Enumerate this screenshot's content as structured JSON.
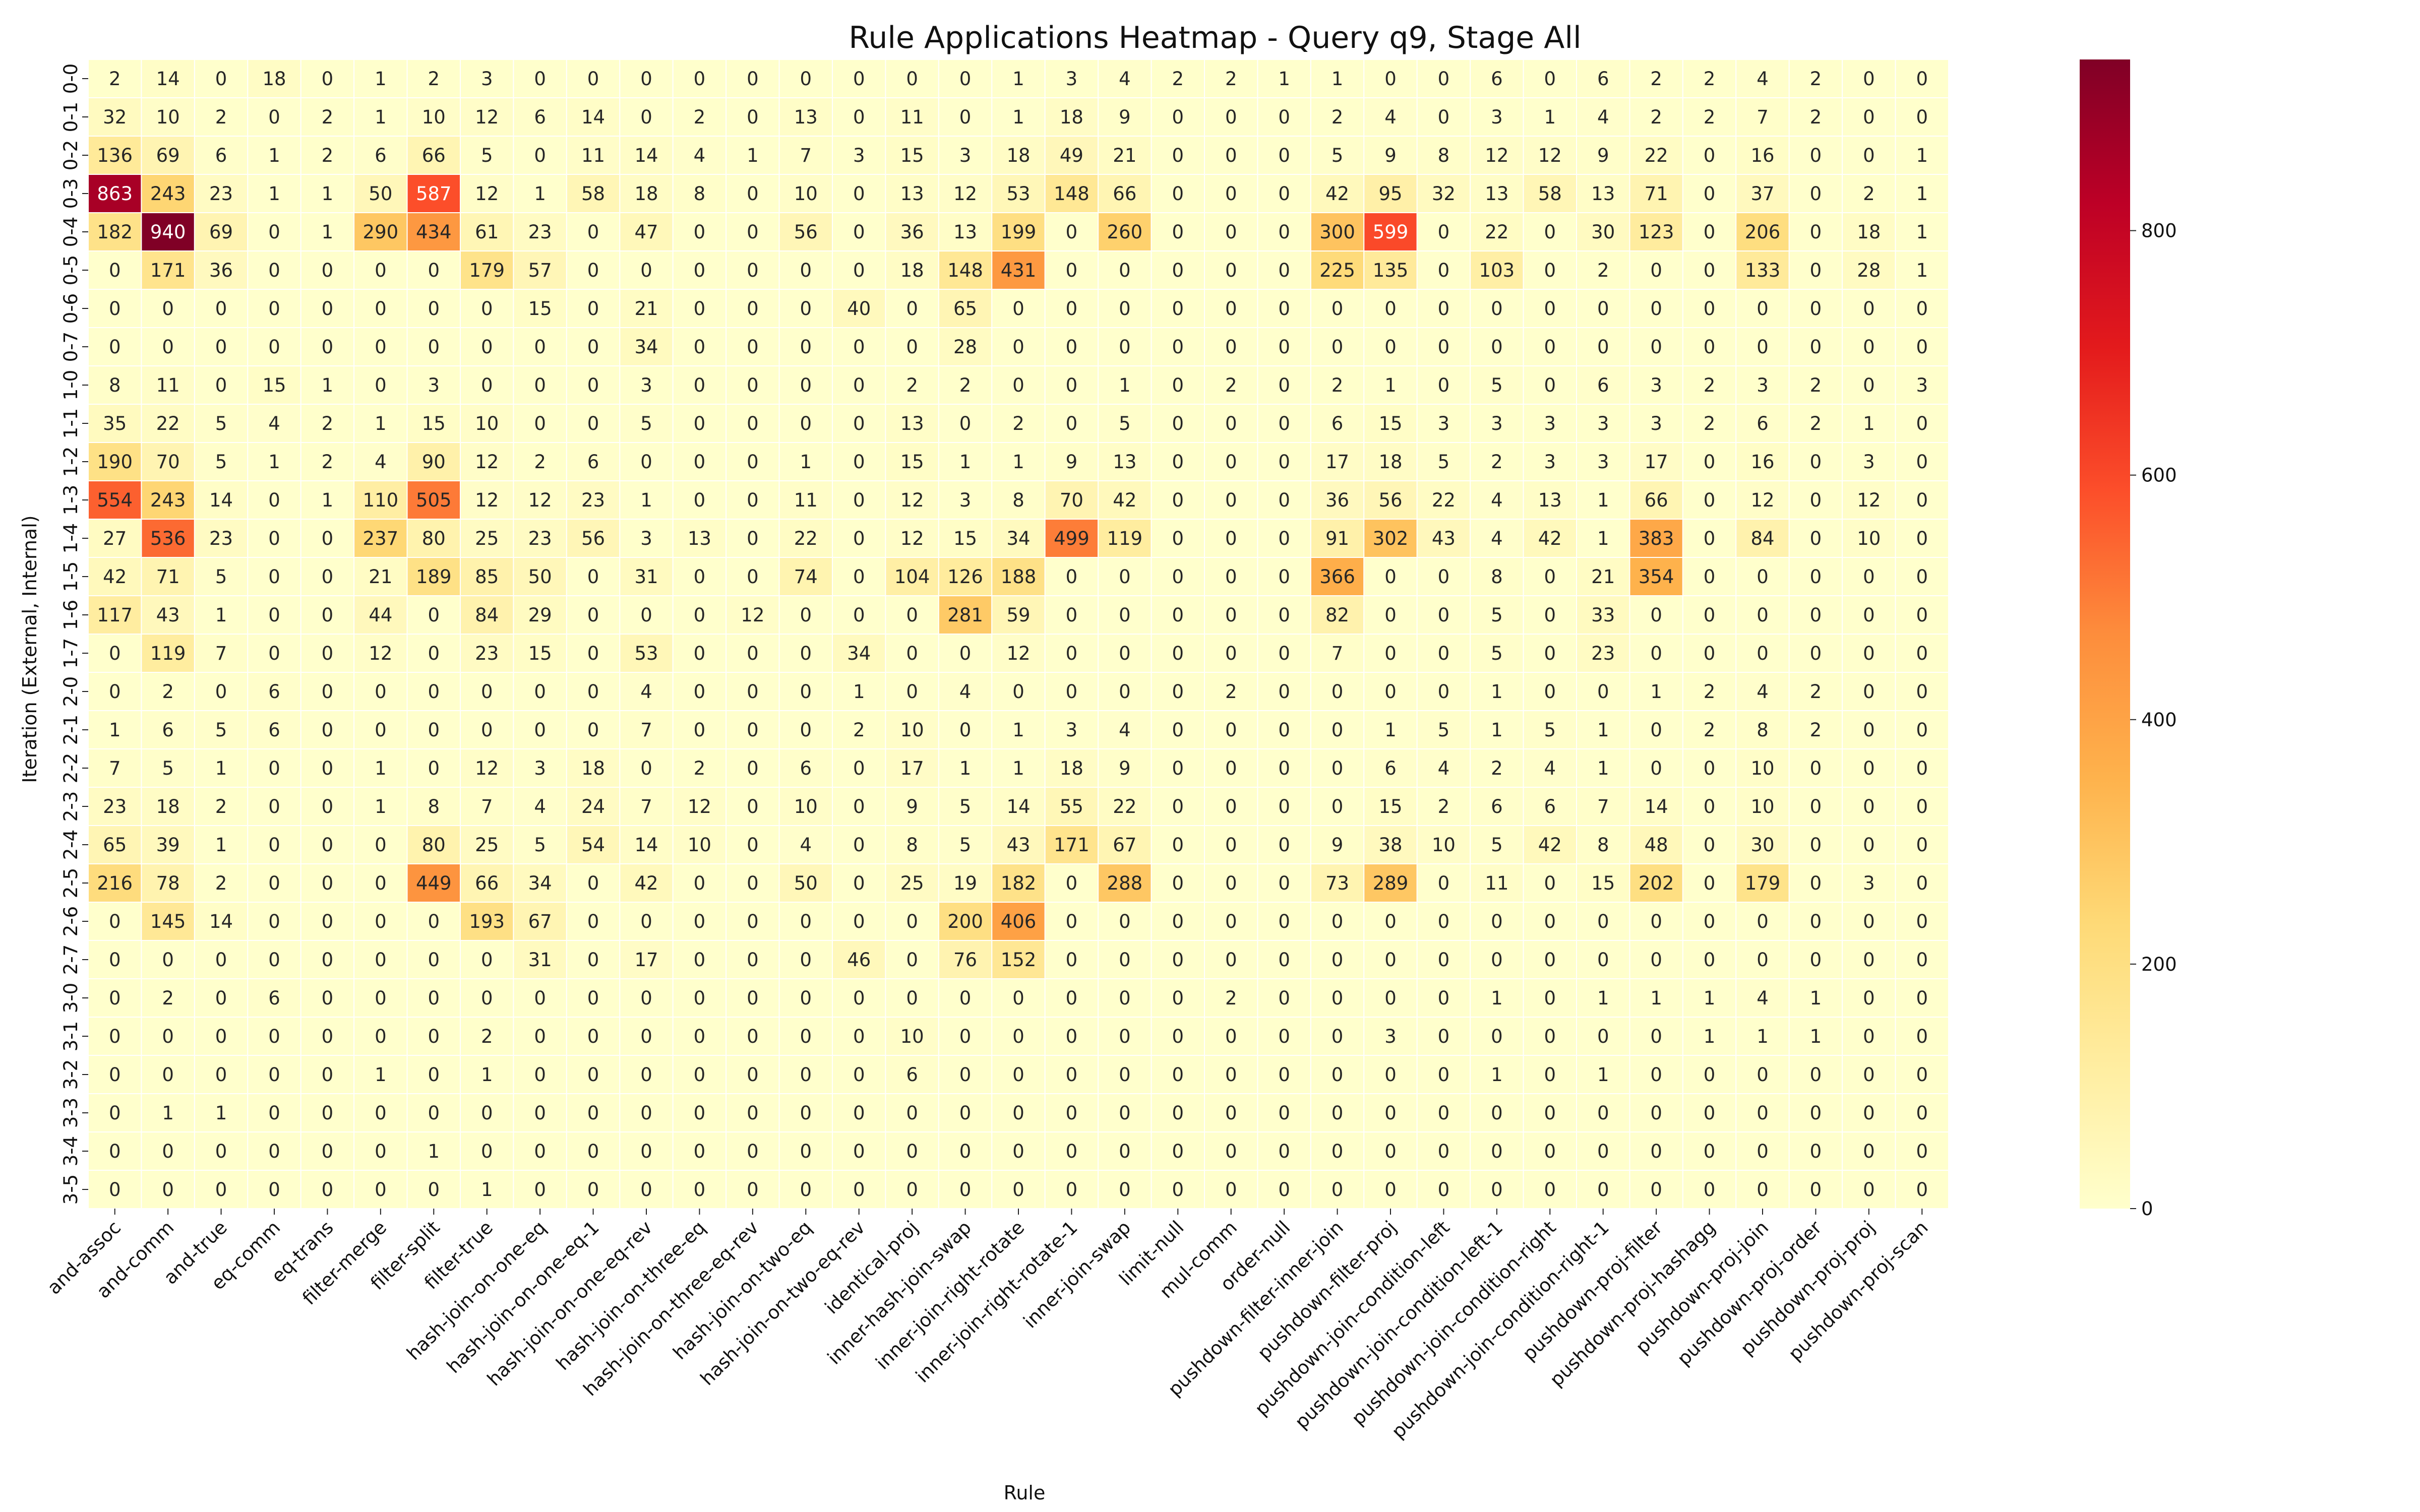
{
  "chart_data": {
    "type": "heatmap",
    "title": "Rule Applications Heatmap - Query q9, Stage All",
    "xlabel": "Rule",
    "ylabel": "Iteration (External, Internal)",
    "colormap": "YlOrRd",
    "color_range": [
      0,
      940
    ],
    "colorbar_ticks": [
      0,
      200,
      400,
      600,
      800
    ],
    "x_categories": [
      "and-assoc",
      "and-comm",
      "and-true",
      "eq-comm",
      "eq-trans",
      "filter-merge",
      "filter-split",
      "filter-true",
      "hash-join-on-one-eq",
      "hash-join-on-one-eq-1",
      "hash-join-on-one-eq-rev",
      "hash-join-on-three-eq",
      "hash-join-on-three-eq-rev",
      "hash-join-on-two-eq",
      "hash-join-on-two-eq-rev",
      "identical-proj",
      "inner-hash-join-swap",
      "inner-join-right-rotate",
      "inner-join-right-rotate-1",
      "inner-join-swap",
      "limit-null",
      "mul-comm",
      "order-null",
      "pushdown-filter-inner-join",
      "pushdown-filter-proj",
      "pushdown-join-condition-left",
      "pushdown-join-condition-left-1",
      "pushdown-join-condition-right",
      "pushdown-join-condition-right-1",
      "pushdown-proj-filter",
      "pushdown-proj-hashagg",
      "pushdown-proj-join",
      "pushdown-proj-order",
      "pushdown-proj-proj",
      "pushdown-proj-scan"
    ],
    "y_categories": [
      "0-0",
      "0-1",
      "0-2",
      "0-3",
      "0-4",
      "0-5",
      "0-6",
      "0-7",
      "1-0",
      "1-1",
      "1-2",
      "1-3",
      "1-4",
      "1-5",
      "1-6",
      "1-7",
      "2-0",
      "2-1",
      "2-2",
      "2-3",
      "2-4",
      "2-5",
      "2-6",
      "2-7",
      "3-0",
      "3-1",
      "3-2",
      "3-3",
      "3-4",
      "3-5"
    ],
    "values": [
      [
        2,
        14,
        0,
        18,
        0,
        1,
        2,
        3,
        0,
        0,
        0,
        0,
        0,
        0,
        0,
        0,
        0,
        1,
        3,
        4,
        2,
        2,
        1,
        1,
        0,
        0,
        6,
        0,
        6,
        2,
        2,
        4,
        2,
        0,
        0
      ],
      [
        32,
        10,
        2,
        0,
        2,
        1,
        10,
        12,
        6,
        14,
        0,
        2,
        0,
        13,
        0,
        11,
        0,
        1,
        18,
        9,
        0,
        0,
        0,
        2,
        4,
        0,
        3,
        1,
        4,
        2,
        2,
        7,
        2,
        0,
        0
      ],
      [
        136,
        69,
        6,
        1,
        2,
        6,
        66,
        5,
        0,
        11,
        14,
        4,
        1,
        7,
        3,
        15,
        3,
        18,
        49,
        21,
        0,
        0,
        0,
        5,
        9,
        8,
        12,
        12,
        9,
        22,
        0,
        16,
        0,
        0,
        1
      ],
      [
        863,
        243,
        23,
        1,
        1,
        50,
        587,
        12,
        1,
        58,
        18,
        8,
        0,
        10,
        0,
        13,
        12,
        53,
        148,
        66,
        0,
        0,
        0,
        42,
        95,
        32,
        13,
        58,
        13,
        71,
        0,
        37,
        0,
        2,
        1
      ],
      [
        182,
        940,
        69,
        0,
        1,
        290,
        434,
        61,
        23,
        0,
        47,
        0,
        0,
        56,
        0,
        36,
        13,
        199,
        0,
        260,
        0,
        0,
        0,
        300,
        599,
        0,
        22,
        0,
        30,
        123,
        0,
        206,
        0,
        18,
        1
      ],
      [
        0,
        171,
        36,
        0,
        0,
        0,
        0,
        179,
        57,
        0,
        0,
        0,
        0,
        0,
        0,
        18,
        148,
        431,
        0,
        0,
        0,
        0,
        0,
        225,
        135,
        0,
        103,
        0,
        2,
        0,
        0,
        133,
        0,
        28,
        1
      ],
      [
        0,
        0,
        0,
        0,
        0,
        0,
        0,
        0,
        15,
        0,
        21,
        0,
        0,
        0,
        40,
        0,
        65,
        0,
        0,
        0,
        0,
        0,
        0,
        0,
        0,
        0,
        0,
        0,
        0,
        0,
        0,
        0,
        0,
        0,
        0
      ],
      [
        0,
        0,
        0,
        0,
        0,
        0,
        0,
        0,
        0,
        0,
        34,
        0,
        0,
        0,
        0,
        0,
        28,
        0,
        0,
        0,
        0,
        0,
        0,
        0,
        0,
        0,
        0,
        0,
        0,
        0,
        0,
        0,
        0,
        0,
        0
      ],
      [
        8,
        11,
        0,
        15,
        1,
        0,
        3,
        0,
        0,
        0,
        3,
        0,
        0,
        0,
        0,
        2,
        2,
        0,
        0,
        1,
        0,
        2,
        0,
        2,
        1,
        0,
        5,
        0,
        6,
        3,
        2,
        3,
        2,
        0,
        3
      ],
      [
        35,
        22,
        5,
        4,
        2,
        1,
        15,
        10,
        0,
        0,
        5,
        0,
        0,
        0,
        0,
        13,
        0,
        2,
        0,
        5,
        0,
        0,
        0,
        6,
        15,
        3,
        3,
        3,
        3,
        3,
        2,
        6,
        2,
        1,
        0
      ],
      [
        190,
        70,
        5,
        1,
        2,
        4,
        90,
        12,
        2,
        6,
        0,
        0,
        0,
        1,
        0,
        15,
        1,
        1,
        9,
        13,
        0,
        0,
        0,
        17,
        18,
        5,
        2,
        3,
        3,
        17,
        0,
        16,
        0,
        3,
        0
      ],
      [
        554,
        243,
        14,
        0,
        1,
        110,
        505,
        12,
        12,
        23,
        1,
        0,
        0,
        11,
        0,
        12,
        3,
        8,
        70,
        42,
        0,
        0,
        0,
        36,
        56,
        22,
        4,
        13,
        1,
        66,
        0,
        12,
        0,
        12,
        0
      ],
      [
        27,
        536,
        23,
        0,
        0,
        237,
        80,
        25,
        23,
        56,
        3,
        13,
        0,
        22,
        0,
        12,
        15,
        34,
        499,
        119,
        0,
        0,
        0,
        91,
        302,
        43,
        4,
        42,
        1,
        383,
        0,
        84,
        0,
        10,
        0
      ],
      [
        42,
        71,
        5,
        0,
        0,
        21,
        189,
        85,
        50,
        0,
        31,
        0,
        0,
        74,
        0,
        104,
        126,
        188,
        0,
        0,
        0,
        0,
        0,
        366,
        0,
        0,
        8,
        0,
        21,
        354,
        0,
        0,
        0,
        0,
        0
      ],
      [
        117,
        43,
        1,
        0,
        0,
        44,
        0,
        84,
        29,
        0,
        0,
        0,
        12,
        0,
        0,
        0,
        281,
        59,
        0,
        0,
        0,
        0,
        0,
        82,
        0,
        0,
        5,
        0,
        33,
        0,
        0,
        0,
        0,
        0,
        0
      ],
      [
        0,
        119,
        7,
        0,
        0,
        12,
        0,
        23,
        15,
        0,
        53,
        0,
        0,
        0,
        34,
        0,
        0,
        12,
        0,
        0,
        0,
        0,
        0,
        7,
        0,
        0,
        5,
        0,
        23,
        0,
        0,
        0,
        0,
        0,
        0
      ],
      [
        0,
        2,
        0,
        6,
        0,
        0,
        0,
        0,
        0,
        0,
        4,
        0,
        0,
        0,
        1,
        0,
        4,
        0,
        0,
        0,
        0,
        2,
        0,
        0,
        0,
        0,
        1,
        0,
        0,
        1,
        2,
        4,
        2,
        0,
        0
      ],
      [
        1,
        6,
        5,
        6,
        0,
        0,
        0,
        0,
        0,
        0,
        7,
        0,
        0,
        0,
        2,
        10,
        0,
        1,
        3,
        4,
        0,
        0,
        0,
        0,
        1,
        5,
        1,
        5,
        1,
        0,
        2,
        8,
        2,
        0,
        0
      ],
      [
        7,
        5,
        1,
        0,
        0,
        1,
        0,
        12,
        3,
        18,
        0,
        2,
        0,
        6,
        0,
        17,
        1,
        1,
        18,
        9,
        0,
        0,
        0,
        0,
        6,
        4,
        2,
        4,
        1,
        0,
        0,
        10,
        0,
        0,
        0
      ],
      [
        23,
        18,
        2,
        0,
        0,
        1,
        8,
        7,
        4,
        24,
        7,
        12,
        0,
        10,
        0,
        9,
        5,
        14,
        55,
        22,
        0,
        0,
        0,
        0,
        15,
        2,
        6,
        6,
        7,
        14,
        0,
        10,
        0,
        0,
        0
      ],
      [
        65,
        39,
        1,
        0,
        0,
        0,
        80,
        25,
        5,
        54,
        14,
        10,
        0,
        4,
        0,
        8,
        5,
        43,
        171,
        67,
        0,
        0,
        0,
        9,
        38,
        10,
        5,
        42,
        8,
        48,
        0,
        30,
        0,
        0,
        0
      ],
      [
        216,
        78,
        2,
        0,
        0,
        0,
        449,
        66,
        34,
        0,
        42,
        0,
        0,
        50,
        0,
        25,
        19,
        182,
        0,
        288,
        0,
        0,
        0,
        73,
        289,
        0,
        11,
        0,
        15,
        202,
        0,
        179,
        0,
        3,
        0
      ],
      [
        0,
        145,
        14,
        0,
        0,
        0,
        0,
        193,
        67,
        0,
        0,
        0,
        0,
        0,
        0,
        0,
        200,
        406,
        0,
        0,
        0,
        0,
        0,
        0,
        0,
        0,
        0,
        0,
        0,
        0,
        0,
        0,
        0,
        0,
        0
      ],
      [
        0,
        0,
        0,
        0,
        0,
        0,
        0,
        0,
        31,
        0,
        17,
        0,
        0,
        0,
        46,
        0,
        76,
        152,
        0,
        0,
        0,
        0,
        0,
        0,
        0,
        0,
        0,
        0,
        0,
        0,
        0,
        0,
        0,
        0,
        0
      ],
      [
        0,
        2,
        0,
        6,
        0,
        0,
        0,
        0,
        0,
        0,
        0,
        0,
        0,
        0,
        0,
        0,
        0,
        0,
        0,
        0,
        0,
        2,
        0,
        0,
        0,
        0,
        1,
        0,
        1,
        1,
        1,
        4,
        1,
        0,
        0
      ],
      [
        0,
        0,
        0,
        0,
        0,
        0,
        0,
        2,
        0,
        0,
        0,
        0,
        0,
        0,
        0,
        10,
        0,
        0,
        0,
        0,
        0,
        0,
        0,
        0,
        3,
        0,
        0,
        0,
        0,
        0,
        1,
        1,
        1,
        0,
        0
      ],
      [
        0,
        0,
        0,
        0,
        0,
        1,
        0,
        1,
        0,
        0,
        0,
        0,
        0,
        0,
        0,
        6,
        0,
        0,
        0,
        0,
        0,
        0,
        0,
        0,
        0,
        0,
        1,
        0,
        1,
        0,
        0,
        0,
        0,
        0,
        0
      ],
      [
        0,
        1,
        1,
        0,
        0,
        0,
        0,
        0,
        0,
        0,
        0,
        0,
        0,
        0,
        0,
        0,
        0,
        0,
        0,
        0,
        0,
        0,
        0,
        0,
        0,
        0,
        0,
        0,
        0,
        0,
        0,
        0,
        0,
        0,
        0
      ],
      [
        0,
        0,
        0,
        0,
        0,
        0,
        1,
        0,
        0,
        0,
        0,
        0,
        0,
        0,
        0,
        0,
        0,
        0,
        0,
        0,
        0,
        0,
        0,
        0,
        0,
        0,
        0,
        0,
        0,
        0,
        0,
        0,
        0,
        0,
        0
      ],
      [
        0,
        0,
        0,
        0,
        0,
        0,
        0,
        1,
        0,
        0,
        0,
        0,
        0,
        0,
        0,
        0,
        0,
        0,
        0,
        0,
        0,
        0,
        0,
        0,
        0,
        0,
        0,
        0,
        0,
        0,
        0,
        0,
        0,
        0,
        0
      ]
    ]
  }
}
